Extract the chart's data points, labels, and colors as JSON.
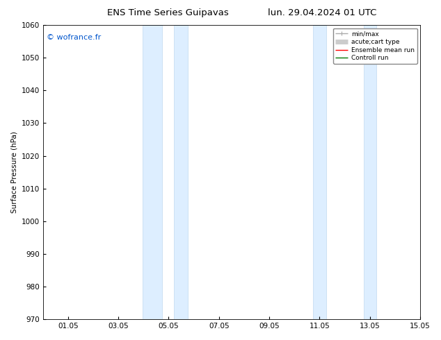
{
  "title_left": "ENS Time Series Guipavas",
  "title_right": "lun. 29.04.2024 01 UTC",
  "ylabel": "Surface Pressure (hPa)",
  "ylim": [
    970,
    1060
  ],
  "yticks": [
    970,
    980,
    990,
    1000,
    1010,
    1020,
    1030,
    1040,
    1050,
    1060
  ],
  "xlim": [
    0,
    14
  ],
  "xticks": [
    1,
    3,
    5,
    7,
    9,
    11,
    13,
    15
  ],
  "xticklabels": [
    "01.05",
    "03.05",
    "05.05",
    "07.05",
    "09.05",
    "11.05",
    "13.05",
    "15.05"
  ],
  "watermark": "© wofrance.fr",
  "watermark_color": "#0055cc",
  "shaded_regions": [
    {
      "xmin": 3.95,
      "xmax": 4.75
    },
    {
      "xmin": 5.2,
      "xmax": 5.75
    },
    {
      "xmin": 10.75,
      "xmax": 11.25
    },
    {
      "xmin": 12.75,
      "xmax": 13.25
    }
  ],
  "shaded_color": "#ddeeff",
  "shaded_edge_color": "#c0d8f0",
  "legend_entries": [
    {
      "label": "min/max",
      "color": "#aaaaaa",
      "lw": 1.0,
      "type": "errorbar"
    },
    {
      "label": "acute;cart type",
      "color": "#cccccc",
      "lw": 5,
      "type": "line"
    },
    {
      "label": "Ensemble mean run",
      "color": "#ff0000",
      "lw": 1.0,
      "type": "line"
    },
    {
      "label": "Controll run",
      "color": "#007700",
      "lw": 1.0,
      "type": "line"
    }
  ],
  "bg_color": "#ffffff",
  "font_size": 7.5,
  "title_font_size": 9.5
}
